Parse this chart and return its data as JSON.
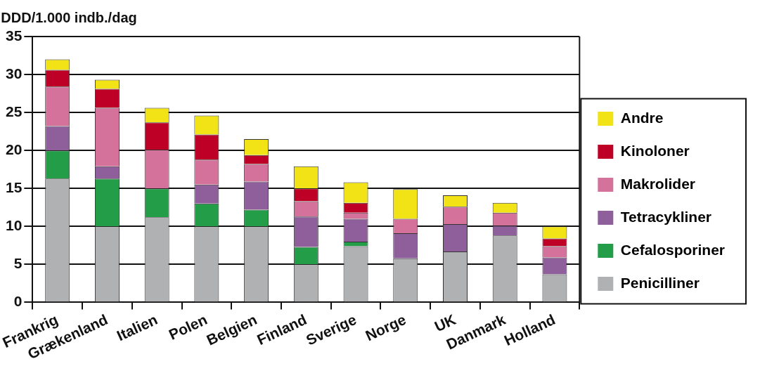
{
  "chart_data": {
    "type": "bar",
    "stacked": true,
    "ylabel": "DDD/1.000 indb./dag",
    "categories": [
      "Frankrig",
      "Grækenland",
      "Italien",
      "Polen",
      "Belgien",
      "Finland",
      "Sverige",
      "Norge",
      "UK",
      "Danmark",
      "Holland"
    ],
    "series": [
      {
        "name": "Penicilliner",
        "color": "#b0b1b3",
        "values": [
          16.3,
          10.0,
          11.2,
          10.0,
          10.0,
          5.0,
          7.4,
          5.8,
          6.7,
          8.8,
          3.7
        ]
      },
      {
        "name": "Cefalosporiner",
        "color": "#239d48",
        "values": [
          3.7,
          6.3,
          3.8,
          3.0,
          2.2,
          2.3,
          0.6,
          0,
          0,
          0,
          0
        ]
      },
      {
        "name": "Tetracykliner",
        "color": "#8f5f9c",
        "values": [
          3.2,
          1.6,
          0,
          2.5,
          3.7,
          4.0,
          3.0,
          3.3,
          3.6,
          1.3,
          2.2
        ]
      },
      {
        "name": "Makrolider",
        "color": "#d4729c",
        "values": [
          5.2,
          7.7,
          5.1,
          3.3,
          2.3,
          2.0,
          0.8,
          1.9,
          2.3,
          1.7,
          1.5
        ]
      },
      {
        "name": "Kinoloner",
        "color": "#bf0026",
        "values": [
          2.2,
          2.5,
          3.6,
          3.3,
          1.2,
          1.7,
          1.3,
          0,
          0,
          0,
          1.0
        ]
      },
      {
        "name": "Andre",
        "color": "#f2e317",
        "values": [
          1.4,
          1.2,
          1.9,
          2.5,
          2.1,
          2.9,
          2.7,
          3.9,
          1.5,
          1.3,
          1.6
        ]
      }
    ],
    "ylim": [
      0,
      35
    ],
    "yticks": [
      0,
      5,
      10,
      15,
      20,
      25,
      30,
      35
    ],
    "grid": "y",
    "legend": "right"
  }
}
